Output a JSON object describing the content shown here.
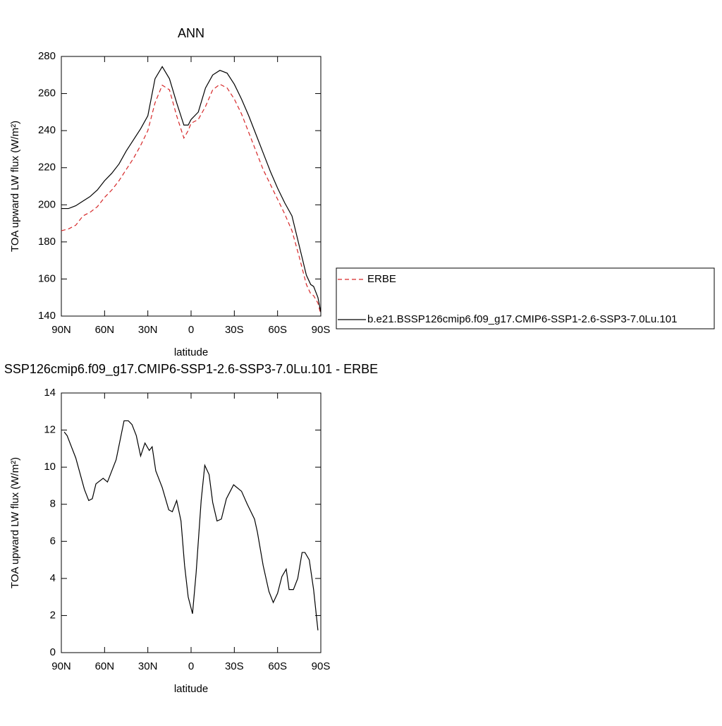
{
  "chart_data": [
    {
      "type": "line",
      "title": "ANN",
      "x_label": "latitude",
      "y_label": "TOA upward LW flux (W/m²)",
      "x": [
        90,
        85,
        80,
        75,
        70,
        65,
        60,
        55,
        50,
        45,
        40,
        35,
        30,
        25,
        20,
        15,
        10,
        5,
        2,
        0,
        -5,
        -10,
        -15,
        -20,
        -25,
        -30,
        -35,
        -40,
        -45,
        -50,
        -55,
        -60,
        -65,
        -70,
        -75,
        -80,
        -83,
        -85,
        -88,
        -90
      ],
      "series": [
        {
          "name": "ERBE",
          "color": "#d62728",
          "dash": true,
          "values": [
            186,
            187,
            189,
            194,
            196,
            199,
            204,
            208,
            213,
            219,
            225,
            232,
            240,
            255,
            264.5,
            262,
            248,
            236,
            240,
            244,
            246,
            253,
            262,
            265,
            263,
            257,
            249,
            239,
            229,
            219,
            211,
            203,
            195,
            186,
            172,
            157,
            152,
            151,
            147,
            141
          ]
        },
        {
          "name": "b.e21.BSSP126cmip6.f09_g17.CMIP6-SSP1-2.6-SSP3-7.0Lu.101",
          "color": "#000000",
          "dash": false,
          "values": [
            198,
            198,
            199.5,
            202,
            204.5,
            208,
            213,
            217,
            222,
            229,
            235,
            241,
            248,
            268,
            274.5,
            268,
            255,
            243,
            243,
            246,
            250,
            263,
            270,
            272.5,
            271,
            265,
            257,
            248,
            238,
            228,
            218,
            209,
            201,
            194,
            178,
            162,
            157,
            156,
            150,
            142
          ]
        }
      ],
      "xlim": [
        90,
        -90
      ],
      "xticks": [
        {
          "value": 90,
          "label": "90N"
        },
        {
          "value": 60,
          "label": "60N"
        },
        {
          "value": 30,
          "label": "30N"
        },
        0,
        {
          "value": -30,
          "label": "30S"
        },
        {
          "value": -60,
          "label": "60S"
        },
        {
          "value": -90,
          "label": "90S"
        }
      ],
      "ylim": [
        140,
        280
      ],
      "yticks": [
        140,
        160,
        180,
        200,
        220,
        240,
        260,
        280
      ],
      "legend": "right"
    },
    {
      "type": "line",
      "title": "SSP126cmip6.f09_g17.CMIP6-SSP1-2.6-SSP3-7.0Lu.101 - ERBE",
      "x_label": "latitude",
      "y_label": "TOA upward LW flux (W/m²)",
      "x": [
        88,
        86,
        80,
        74,
        71,
        68.5,
        66,
        61,
        58,
        52,
        46.5,
        43.5,
        41,
        38,
        35,
        32,
        29,
        27,
        24.5,
        20,
        15.5,
        13,
        10,
        7,
        4.5,
        2,
        -1,
        -3.5,
        -7,
        -9.5,
        -12.5,
        -15,
        -18,
        -21,
        -24.5,
        -29.5,
        -35,
        -39,
        -44,
        -46,
        -50,
        -54,
        -57,
        -60,
        -63,
        -66,
        -68,
        -71,
        -74,
        -77,
        -79,
        -82,
        -85,
        -88
      ],
      "color": "#000000",
      "values": [
        11.9,
        11.7,
        10.5,
        8.8,
        8.2,
        8.3,
        9.1,
        9.4,
        9.2,
        10.4,
        12.5,
        12.5,
        12.3,
        11.7,
        10.6,
        11.3,
        10.9,
        11.1,
        9.8,
        8.9,
        7.7,
        7.6,
        8.2,
        7.1,
        4.7,
        3,
        2.1,
        4.3,
        8.2,
        10.1,
        9.6,
        8.1,
        7.1,
        7.2,
        8.3,
        9.05,
        8.7,
        8,
        7.2,
        6.5,
        4.7,
        3.3,
        2.7,
        3.2,
        4.1,
        4.5,
        3.4,
        3.4,
        4,
        5.4,
        5.4,
        5,
        3.4,
        1.2
      ],
      "xlim": [
        90,
        -90
      ],
      "xticks": [
        {
          "value": 90,
          "label": "90N"
        },
        {
          "value": 60,
          "label": "60N"
        },
        {
          "value": 30,
          "label": "30N"
        },
        0,
        {
          "value": -30,
          "label": "30S"
        },
        {
          "value": -60,
          "label": "60S"
        },
        {
          "value": -90,
          "label": "90S"
        }
      ],
      "ylim": [
        0,
        14
      ],
      "yticks": [
        0,
        2,
        4,
        6,
        8,
        10,
        12,
        14
      ]
    }
  ]
}
